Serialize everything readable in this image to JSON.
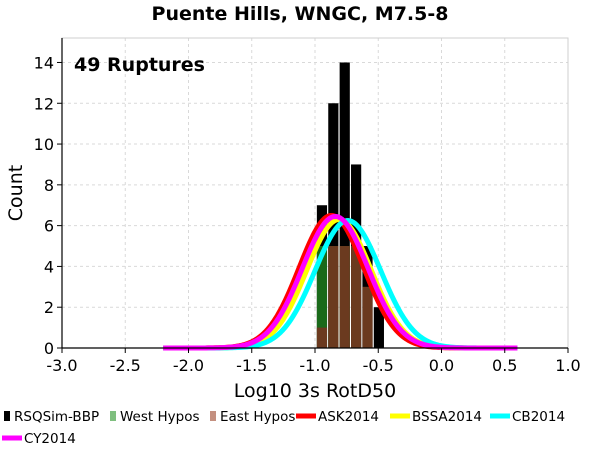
{
  "chart_data": {
    "type": "bar",
    "title": "Puente Hills, WNGC, M7.5-8",
    "annotation": "49 Ruptures",
    "xlabel": "Log10 3s RotD50",
    "ylabel": "Count",
    "xlim": [
      -3.0,
      1.0
    ],
    "ylim": [
      0,
      15.2
    ],
    "xticks": [
      -3.0,
      -2.5,
      -2.0,
      -1.5,
      -1.0,
      -0.5,
      0.0,
      0.5,
      1.0
    ],
    "xtick_labels": [
      "-3.0",
      "-2.5",
      "-2.0",
      "-1.5",
      "-1.0",
      "-0.5",
      "0.0",
      "0.5",
      "1.0"
    ],
    "yticks": [
      0,
      2,
      4,
      6,
      8,
      10,
      12,
      14
    ],
    "ytick_labels": [
      "0",
      "2",
      "4",
      "6",
      "8",
      "10",
      "12",
      "14"
    ],
    "grid": true,
    "legend_position": "bottom",
    "bin_width": 0.09,
    "bins": [
      {
        "center": -0.945,
        "total": 7,
        "west": 5,
        "east": 1
      },
      {
        "center": -0.855,
        "total": 12,
        "west": 5,
        "east": 5
      },
      {
        "center": -0.765,
        "total": 14,
        "west": 5,
        "east": 5
      },
      {
        "center": -0.675,
        "total": 9,
        "west": 0,
        "east": 5
      },
      {
        "center": -0.585,
        "total": 5,
        "west": 0,
        "east": 3
      },
      {
        "center": -0.495,
        "total": 2,
        "west": 0,
        "east": 0
      }
    ],
    "bar_colors": {
      "total": "#000000",
      "west": "#1a6a1a",
      "east": "#6b3a1f"
    },
    "series": [
      {
        "name": "RSQSim-BBP",
        "color": "#000000",
        "kind": "bar"
      },
      {
        "name": "West Hypos",
        "color": "#7fbf7f",
        "kind": "bar"
      },
      {
        "name": "East Hypos",
        "color": "#c49080",
        "kind": "bar"
      },
      {
        "name": "ASK2014",
        "color": "#ff0000",
        "kind": "curve",
        "mean": -0.87,
        "sigma": 0.255,
        "peak": 6.5
      },
      {
        "name": "BSSA2014",
        "color": "#ffff00",
        "kind": "curve",
        "mean": -0.81,
        "sigma": 0.255,
        "peak": 6.3
      },
      {
        "name": "CB2014",
        "color": "#00ffff",
        "kind": "curve",
        "mean": -0.74,
        "sigma": 0.26,
        "peak": 6.25
      },
      {
        "name": "CY2014",
        "color": "#ff00ff",
        "kind": "curve",
        "mean": -0.84,
        "sigma": 0.26,
        "peak": 6.45
      }
    ],
    "curve_x_range": [
      -2.2,
      0.6
    ]
  }
}
